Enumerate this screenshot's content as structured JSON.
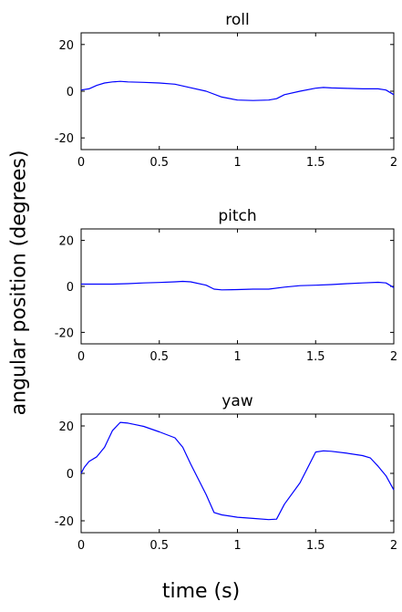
{
  "figure": {
    "ylabel": "angular position (degrees)",
    "xlabel": "time (s)"
  },
  "chart_data": [
    {
      "type": "line",
      "title": "roll",
      "xlim": [
        0,
        2
      ],
      "ylim": [
        -25,
        25
      ],
      "xticks": [
        0,
        0.5,
        1,
        1.5,
        2
      ],
      "xtick_labels": [
        "0",
        "0.5",
        "1",
        "1.5",
        "2"
      ],
      "yticks": [
        20,
        0,
        -20
      ],
      "ytick_labels": [
        "20",
        "0",
        "-20"
      ],
      "line_color": "#0000ff",
      "series": [
        {
          "x": [
            0,
            0.05,
            0.1,
            0.15,
            0.2,
            0.25,
            0.3,
            0.4,
            0.5,
            0.6,
            0.7,
            0.8,
            0.9,
            1.0,
            1.1,
            1.2,
            1.25,
            1.3,
            1.4,
            1.5,
            1.55,
            1.6,
            1.7,
            1.8,
            1.9,
            1.95,
            2.0
          ],
          "y": [
            0.5,
            1,
            2.5,
            3.5,
            4,
            4.2,
            4,
            3.8,
            3.5,
            3,
            1.5,
            0,
            -2.5,
            -3.8,
            -4,
            -3.8,
            -3.2,
            -1.5,
            0,
            1.3,
            1.6,
            1.4,
            1.2,
            1,
            1,
            0.5,
            -1.5
          ]
        }
      ]
    },
    {
      "type": "line",
      "title": "pitch",
      "xlim": [
        0,
        2
      ],
      "ylim": [
        -25,
        25
      ],
      "xticks": [
        0,
        0.5,
        1,
        1.5,
        2
      ],
      "xtick_labels": [
        "0",
        "0.5",
        "1",
        "1.5",
        "2"
      ],
      "yticks": [
        20,
        0,
        -20
      ],
      "ytick_labels": [
        "20",
        "0",
        "-20"
      ],
      "line_color": "#0000ff",
      "series": [
        {
          "x": [
            0,
            0.1,
            0.2,
            0.3,
            0.4,
            0.5,
            0.6,
            0.65,
            0.7,
            0.8,
            0.85,
            0.9,
            1.0,
            1.1,
            1.2,
            1.3,
            1.4,
            1.5,
            1.6,
            1.7,
            1.8,
            1.9,
            1.95,
            2.0
          ],
          "y": [
            1,
            1,
            1,
            1.2,
            1.5,
            1.7,
            2,
            2.2,
            2,
            0.5,
            -1.2,
            -1.5,
            -1.4,
            -1.2,
            -1.2,
            -0.3,
            0.3,
            0.5,
            0.8,
            1.2,
            1.5,
            1.8,
            1.5,
            -0.5
          ]
        }
      ]
    },
    {
      "type": "line",
      "title": "yaw",
      "xlim": [
        0,
        2
      ],
      "ylim": [
        -25,
        25
      ],
      "xticks": [
        0,
        0.5,
        1,
        1.5,
        2
      ],
      "xtick_labels": [
        "0",
        "0.5",
        "1",
        "1.5",
        "2"
      ],
      "yticks": [
        20,
        0,
        -20
      ],
      "ytick_labels": [
        "20",
        "0",
        "-20"
      ],
      "line_color": "#0000ff",
      "series": [
        {
          "x": [
            0,
            0.02,
            0.05,
            0.1,
            0.15,
            0.2,
            0.25,
            0.3,
            0.35,
            0.4,
            0.5,
            0.6,
            0.65,
            0.7,
            0.8,
            0.85,
            0.9,
            1.0,
            1.1,
            1.2,
            1.25,
            1.3,
            1.4,
            1.5,
            1.55,
            1.6,
            1.7,
            1.8,
            1.85,
            1.9,
            1.95,
            2.0
          ],
          "y": [
            0,
            2.5,
            5,
            7,
            11,
            18,
            21.5,
            21.2,
            20.5,
            19.8,
            17.5,
            15,
            11,
            4,
            -9,
            -16.5,
            -17.5,
            -18.5,
            -19,
            -19.5,
            -19.3,
            -13,
            -4,
            9,
            9.5,
            9.3,
            8.5,
            7.5,
            6.5,
            3,
            -1,
            -7
          ]
        }
      ]
    }
  ]
}
